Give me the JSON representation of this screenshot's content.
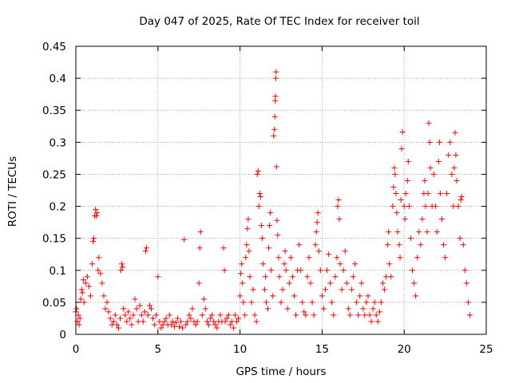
{
  "chart_data": {
    "type": "scatter",
    "title": "Day 047 of 2025, Rate Of TEC Index for receiver toil",
    "xlabel": "GPS time / hours",
    "ylabel": "ROTI / TECUs",
    "xlim": [
      0,
      25
    ],
    "ylim": [
      0,
      0.45
    ],
    "xticks": [
      "0",
      "5",
      "10",
      "15",
      "20",
      "25"
    ],
    "yticks": [
      "0",
      "0.05",
      "0.1",
      "0.15",
      "0.2",
      "0.25",
      "0.3",
      "0.35",
      "0.4",
      "0.45"
    ],
    "grid": true,
    "marker": "+",
    "color": "#ff0000",
    "series": [
      {
        "name": "ROTI",
        "points": [
          [
            0.0,
            0.035
          ],
          [
            0.05,
            0.04
          ],
          [
            0.1,
            0.02
          ],
          [
            0.15,
            0.03
          ],
          [
            0.2,
            0.015
          ],
          [
            0.25,
            0.025
          ],
          [
            0.3,
            0.055
          ],
          [
            0.35,
            0.07
          ],
          [
            0.4,
            0.065
          ],
          [
            0.45,
            0.085
          ],
          [
            0.5,
            0.05
          ],
          [
            0.6,
            0.08
          ],
          [
            0.7,
            0.09
          ],
          [
            0.8,
            0.075
          ],
          [
            0.9,
            0.06
          ],
          [
            1.0,
            0.11
          ],
          [
            1.05,
            0.145
          ],
          [
            1.1,
            0.15
          ],
          [
            1.15,
            0.185
          ],
          [
            1.2,
            0.195
          ],
          [
            1.25,
            0.185
          ],
          [
            1.3,
            0.19
          ],
          [
            1.35,
            0.1
          ],
          [
            1.4,
            0.12
          ],
          [
            1.5,
            0.095
          ],
          [
            1.6,
            0.08
          ],
          [
            1.7,
            0.06
          ],
          [
            1.8,
            0.04
          ],
          [
            1.9,
            0.05
          ],
          [
            2.0,
            0.035
          ],
          [
            2.1,
            0.025
          ],
          [
            2.2,
            0.015
          ],
          [
            2.3,
            0.02
          ],
          [
            2.4,
            0.03
          ],
          [
            2.5,
            0.015
          ],
          [
            2.6,
            0.01
          ],
          [
            2.7,
            0.025
          ],
          [
            2.75,
            0.1
          ],
          [
            2.8,
            0.11
          ],
          [
            2.85,
            0.105
          ],
          [
            2.9,
            0.04
          ],
          [
            3.0,
            0.03
          ],
          [
            3.1,
            0.02
          ],
          [
            3.2,
            0.035
          ],
          [
            3.3,
            0.025
          ],
          [
            3.4,
            0.015
          ],
          [
            3.5,
            0.03
          ],
          [
            3.6,
            0.055
          ],
          [
            3.7,
            0.04
          ],
          [
            3.8,
            0.02
          ],
          [
            3.9,
            0.045
          ],
          [
            4.0,
            0.03
          ],
          [
            4.1,
            0.02
          ],
          [
            4.2,
            0.035
          ],
          [
            4.25,
            0.13
          ],
          [
            4.3,
            0.135
          ],
          [
            4.4,
            0.03
          ],
          [
            4.5,
            0.045
          ],
          [
            4.6,
            0.04
          ],
          [
            4.7,
            0.025
          ],
          [
            4.8,
            0.015
          ],
          [
            4.9,
            0.03
          ],
          [
            5.0,
            0.09
          ],
          [
            5.1,
            0.02
          ],
          [
            5.2,
            0.01
          ],
          [
            5.3,
            0.015
          ],
          [
            5.4,
            0.02
          ],
          [
            5.5,
            0.025
          ],
          [
            5.6,
            0.015
          ],
          [
            5.7,
            0.03
          ],
          [
            5.8,
            0.015
          ],
          [
            5.9,
            0.02
          ],
          [
            6.0,
            0.012
          ],
          [
            6.1,
            0.018
          ],
          [
            6.2,
            0.025
          ],
          [
            6.3,
            0.012
          ],
          [
            6.4,
            0.02
          ],
          [
            6.5,
            0.01
          ],
          [
            6.6,
            0.148
          ],
          [
            6.7,
            0.015
          ],
          [
            6.8,
            0.02
          ],
          [
            6.9,
            0.03
          ],
          [
            7.0,
            0.025
          ],
          [
            7.1,
            0.04
          ],
          [
            7.2,
            0.02
          ],
          [
            7.3,
            0.015
          ],
          [
            7.4,
            0.02
          ],
          [
            7.5,
            0.08
          ],
          [
            7.55,
            0.135
          ],
          [
            7.6,
            0.16
          ],
          [
            7.7,
            0.03
          ],
          [
            7.8,
            0.055
          ],
          [
            7.9,
            0.04
          ],
          [
            8.0,
            0.02
          ],
          [
            8.1,
            0.015
          ],
          [
            8.2,
            0.025
          ],
          [
            8.3,
            0.03
          ],
          [
            8.4,
            0.02
          ],
          [
            8.5,
            0.015
          ],
          [
            8.6,
            0.01
          ],
          [
            8.7,
            0.02
          ],
          [
            8.8,
            0.03
          ],
          [
            8.9,
            0.02
          ],
          [
            9.0,
            0.135
          ],
          [
            9.05,
            0.1
          ],
          [
            9.1,
            0.02
          ],
          [
            9.2,
            0.025
          ],
          [
            9.3,
            0.03
          ],
          [
            9.4,
            0.015
          ],
          [
            9.5,
            0.02
          ],
          [
            9.6,
            0.01
          ],
          [
            9.7,
            0.03
          ],
          [
            9.8,
            0.02
          ],
          [
            9.9,
            0.025
          ],
          [
            10.0,
            0.06
          ],
          [
            10.05,
            0.095
          ],
          [
            10.1,
            0.11
          ],
          [
            10.15,
            0.08
          ],
          [
            10.2,
            0.05
          ],
          [
            10.3,
            0.03
          ],
          [
            10.35,
            0.12
          ],
          [
            10.4,
            0.14
          ],
          [
            10.45,
            0.165
          ],
          [
            10.5,
            0.18
          ],
          [
            10.55,
            0.13
          ],
          [
            10.6,
            0.09
          ],
          [
            10.7,
            0.05
          ],
          [
            10.8,
            0.07
          ],
          [
            10.9,
            0.03
          ],
          [
            11.0,
            0.02
          ],
          [
            11.05,
            0.25
          ],
          [
            11.1,
            0.255
          ],
          [
            11.15,
            0.2
          ],
          [
            11.2,
            0.22
          ],
          [
            11.25,
            0.215
          ],
          [
            11.3,
            0.17
          ],
          [
            11.35,
            0.15
          ],
          [
            11.4,
            0.11
          ],
          [
            11.5,
            0.07
          ],
          [
            11.55,
            0.09
          ],
          [
            11.6,
            0.05
          ],
          [
            11.7,
            0.04
          ],
          [
            11.75,
            0.135
          ],
          [
            11.8,
            0.17
          ],
          [
            11.85,
            0.19
          ],
          [
            11.9,
            0.1
          ],
          [
            12.0,
            0.06
          ],
          [
            12.05,
            0.31
          ],
          [
            12.1,
            0.32
          ],
          [
            12.12,
            0.34
          ],
          [
            12.14,
            0.365
          ],
          [
            12.16,
            0.372
          ],
          [
            12.18,
            0.4
          ],
          [
            12.2,
            0.41
          ],
          [
            12.22,
            0.262
          ],
          [
            12.25,
            0.178
          ],
          [
            12.3,
            0.155
          ],
          [
            12.35,
            0.12
          ],
          [
            12.4,
            0.09
          ],
          [
            12.5,
            0.05
          ],
          [
            12.6,
            0.07
          ],
          [
            12.7,
            0.11
          ],
          [
            12.75,
            0.13
          ],
          [
            12.8,
            0.1
          ],
          [
            12.9,
            0.04
          ],
          [
            13.0,
            0.08
          ],
          [
            13.1,
            0.12
          ],
          [
            13.2,
            0.09
          ],
          [
            13.3,
            0.06
          ],
          [
            13.4,
            0.03
          ],
          [
            13.5,
            0.1
          ],
          [
            13.6,
            0.14
          ],
          [
            13.7,
            0.1
          ],
          [
            13.8,
            0.05
          ],
          [
            13.9,
            0.035
          ],
          [
            14.0,
            0.03
          ],
          [
            14.1,
            0.09
          ],
          [
            14.2,
            0.12
          ],
          [
            14.3,
            0.08
          ],
          [
            14.4,
            0.05
          ],
          [
            14.5,
            0.03
          ],
          [
            14.6,
            0.14
          ],
          [
            14.65,
            0.16
          ],
          [
            14.7,
            0.175
          ],
          [
            14.75,
            0.19
          ],
          [
            14.8,
            0.13
          ],
          [
            14.9,
            0.1
          ],
          [
            15.0,
            0.06
          ],
          [
            15.1,
            0.04
          ],
          [
            15.2,
            0.07
          ],
          [
            15.3,
            0.1
          ],
          [
            15.4,
            0.125
          ],
          [
            15.5,
            0.08
          ],
          [
            15.6,
            0.05
          ],
          [
            15.7,
            0.03
          ],
          [
            15.8,
            0.09
          ],
          [
            15.9,
            0.12
          ],
          [
            15.95,
            0.2
          ],
          [
            16.0,
            0.21
          ],
          [
            16.05,
            0.18
          ],
          [
            16.1,
            0.11
          ],
          [
            16.2,
            0.07
          ],
          [
            16.3,
            0.1
          ],
          [
            16.4,
            0.13
          ],
          [
            16.5,
            0.08
          ],
          [
            16.6,
            0.04
          ],
          [
            16.7,
            0.03
          ],
          [
            16.8,
            0.07
          ],
          [
            16.9,
            0.09
          ],
          [
            17.0,
            0.11
          ],
          [
            17.1,
            0.05
          ],
          [
            17.2,
            0.03
          ],
          [
            17.3,
            0.06
          ],
          [
            17.4,
            0.08
          ],
          [
            17.5,
            0.04
          ],
          [
            17.6,
            0.03
          ],
          [
            17.7,
            0.05
          ],
          [
            17.8,
            0.06
          ],
          [
            17.9,
            0.03
          ],
          [
            18.0,
            0.02
          ],
          [
            18.1,
            0.04
          ],
          [
            18.2,
            0.05
          ],
          [
            18.3,
            0.03
          ],
          [
            18.4,
            0.02
          ],
          [
            18.5,
            0.035
          ],
          [
            18.6,
            0.05
          ],
          [
            18.7,
            0.08
          ],
          [
            18.8,
            0.07
          ],
          [
            18.9,
            0.09
          ],
          [
            19.0,
            0.14
          ],
          [
            19.05,
            0.16
          ],
          [
            19.1,
            0.11
          ],
          [
            19.2,
            0.09
          ],
          [
            19.3,
            0.2
          ],
          [
            19.35,
            0.23
          ],
          [
            19.4,
            0.26
          ],
          [
            19.45,
            0.25
          ],
          [
            19.5,
            0.22
          ],
          [
            19.55,
            0.19
          ],
          [
            19.6,
            0.16
          ],
          [
            19.7,
            0.14
          ],
          [
            19.75,
            0.12
          ],
          [
            19.8,
            0.21
          ],
          [
            19.85,
            0.29
          ],
          [
            19.9,
            0.316
          ],
          [
            20.0,
            0.2
          ],
          [
            20.05,
            0.18
          ],
          [
            20.1,
            0.22
          ],
          [
            20.2,
            0.24
          ],
          [
            20.25,
            0.27
          ],
          [
            20.3,
            0.2
          ],
          [
            20.4,
            0.15
          ],
          [
            20.5,
            0.1
          ],
          [
            20.6,
            0.08
          ],
          [
            20.7,
            0.06
          ],
          [
            20.8,
            0.12
          ],
          [
            20.9,
            0.16
          ],
          [
            21.0,
            0.14
          ],
          [
            21.1,
            0.18
          ],
          [
            21.2,
            0.22
          ],
          [
            21.25,
            0.24
          ],
          [
            21.3,
            0.2
          ],
          [
            21.4,
            0.16
          ],
          [
            21.45,
            0.22
          ],
          [
            21.5,
            0.33
          ],
          [
            21.55,
            0.3
          ],
          [
            21.6,
            0.26
          ],
          [
            21.7,
            0.2
          ],
          [
            21.8,
            0.25
          ],
          [
            21.9,
            0.2
          ],
          [
            22.0,
            0.16
          ],
          [
            22.1,
            0.27
          ],
          [
            22.15,
            0.3
          ],
          [
            22.2,
            0.22
          ],
          [
            22.3,
            0.18
          ],
          [
            22.4,
            0.14
          ],
          [
            22.5,
            0.12
          ],
          [
            22.6,
            0.22
          ],
          [
            22.7,
            0.28
          ],
          [
            22.8,
            0.3
          ],
          [
            22.9,
            0.25
          ],
          [
            23.0,
            0.2
          ],
          [
            23.05,
            0.26
          ],
          [
            23.1,
            0.315
          ],
          [
            23.15,
            0.28
          ],
          [
            23.2,
            0.24
          ],
          [
            23.3,
            0.2
          ],
          [
            23.4,
            0.15
          ],
          [
            23.45,
            0.21
          ],
          [
            23.5,
            0.215
          ],
          [
            23.6,
            0.14
          ],
          [
            23.7,
            0.1
          ],
          [
            23.8,
            0.08
          ],
          [
            23.9,
            0.05
          ],
          [
            24.0,
            0.03
          ]
        ]
      }
    ]
  }
}
